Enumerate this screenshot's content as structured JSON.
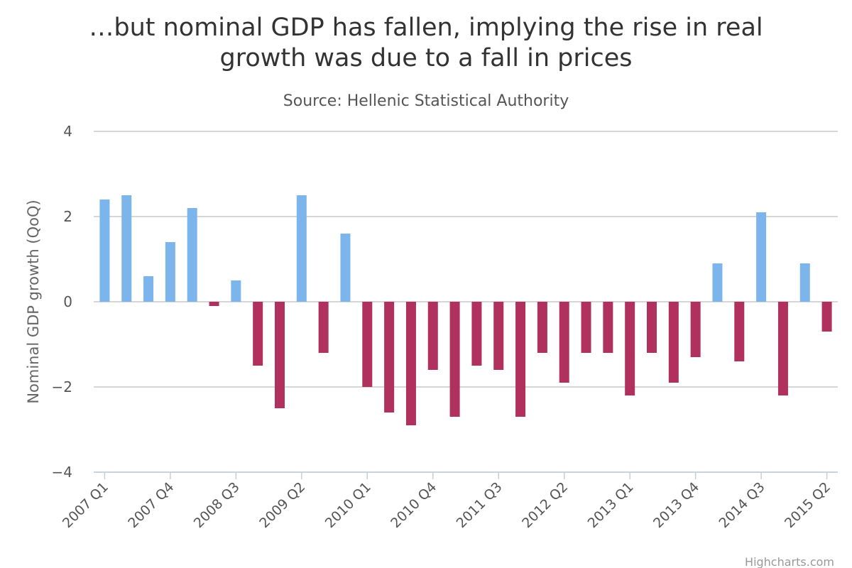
{
  "chart_data": {
    "type": "bar",
    "title_lines": [
      "…but nominal GDP has fallen, implying the rise in real",
      "growth was due to a fall in prices"
    ],
    "subtitle": "Source: Hellenic Statistical Authority",
    "ylabel": "Nominal GDP growth (QoQ)",
    "xlabel": "",
    "ylim": [
      -4,
      4
    ],
    "yticks": [
      4,
      2,
      0,
      -2,
      -4
    ],
    "ytick_labels": [
      "4",
      "2",
      "0",
      "−2",
      "−4"
    ],
    "grid": true,
    "legend": "none",
    "categories": [
      "2007 Q1",
      "2007 Q2",
      "2007 Q3",
      "2007 Q4",
      "2008 Q1",
      "2008 Q2",
      "2008 Q3",
      "2008 Q4",
      "2009 Q1",
      "2009 Q2",
      "2009 Q3",
      "2009 Q4",
      "2010 Q1",
      "2010 Q2",
      "2010 Q3",
      "2010 Q4",
      "2011 Q1",
      "2011 Q2",
      "2011 Q3",
      "2011 Q4",
      "2012 Q1",
      "2012 Q2",
      "2012 Q3",
      "2012 Q4",
      "2013 Q1",
      "2013 Q2",
      "2013 Q3",
      "2013 Q4",
      "2014 Q1",
      "2014 Q2",
      "2014 Q3",
      "2014 Q4",
      "2015 Q1",
      "2015 Q2"
    ],
    "xtick_labels_every": 3,
    "values": [
      2.4,
      2.5,
      0.6,
      1.4,
      2.2,
      -0.1,
      0.5,
      -1.5,
      -2.5,
      2.5,
      -1.2,
      1.6,
      -2.0,
      -2.6,
      -2.9,
      -1.6,
      -2.7,
      -1.5,
      -1.6,
      -2.7,
      -1.2,
      -1.9,
      -1.2,
      -1.2,
      -2.2,
      -1.2,
      -1.9,
      -1.3,
      0.9,
      -1.4,
      2.1,
      -2.2,
      0.9,
      -0.7
    ],
    "colors": {
      "positive": "#7cb5ec",
      "negative": "#b0305e"
    }
  },
  "credits": "Highcharts.com"
}
